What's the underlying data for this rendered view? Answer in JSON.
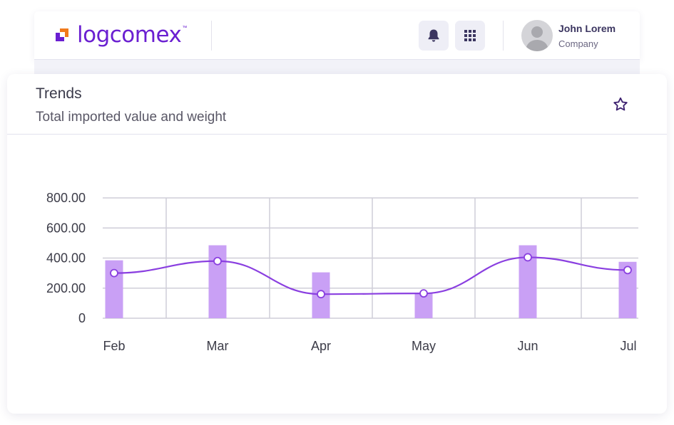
{
  "header": {
    "logo_text": "logcomex",
    "logo_tm": "™",
    "notifications_icon": "bell-icon",
    "apps_icon": "grid-icon",
    "user": {
      "name": "John Lorem",
      "company": "Company",
      "avatar_icon": "user-avatar-icon"
    }
  },
  "card": {
    "title": "Trends",
    "subtitle": "Total imported value and weight",
    "favorite_icon": "star-icon"
  },
  "colors": {
    "brand": "#6a1fd1",
    "bar": "#c9a0f5",
    "line": "#8a3fe0"
  },
  "chart_data": {
    "type": "bar",
    "categories": [
      "Feb",
      "Mar",
      "Apr",
      "May",
      "Jun",
      "Jul"
    ],
    "series": [
      {
        "type": "bar",
        "values": [
          385,
          485,
          305,
          165,
          485,
          375
        ]
      },
      {
        "type": "line",
        "values": [
          300,
          380,
          160,
          165,
          405,
          320
        ]
      }
    ],
    "yticks": [
      "800.00",
      "600.00",
      "400.00",
      "200.00",
      "0"
    ],
    "ylim": [
      0,
      800
    ],
    "grid": true
  }
}
